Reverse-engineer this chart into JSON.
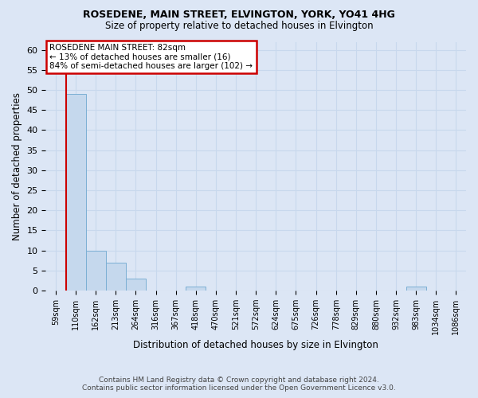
{
  "title": "ROSEDENE, MAIN STREET, ELVINGTON, YORK, YO41 4HG",
  "subtitle": "Size of property relative to detached houses in Elvington",
  "xlabel": "Distribution of detached houses by size in Elvington",
  "ylabel": "Number of detached properties",
  "footnote1": "Contains HM Land Registry data © Crown copyright and database right 2024.",
  "footnote2": "Contains public sector information licensed under the Open Government Licence v3.0.",
  "bin_labels": [
    "59sqm",
    "110sqm",
    "162sqm",
    "213sqm",
    "264sqm",
    "316sqm",
    "367sqm",
    "418sqm",
    "470sqm",
    "521sqm",
    "572sqm",
    "624sqm",
    "675sqm",
    "726sqm",
    "778sqm",
    "829sqm",
    "880sqm",
    "932sqm",
    "983sqm",
    "1034sqm",
    "1086sqm"
  ],
  "bar_heights": [
    0,
    49,
    10,
    7,
    3,
    0,
    0,
    1,
    0,
    0,
    0,
    0,
    0,
    0,
    0,
    0,
    0,
    0,
    1,
    0,
    0
  ],
  "bar_color": "#c5d8ed",
  "bar_edge_color": "#7bafd4",
  "ylim": [
    0,
    62
  ],
  "yticks": [
    0,
    5,
    10,
    15,
    20,
    25,
    30,
    35,
    40,
    45,
    50,
    55,
    60
  ],
  "red_line_x": 0.5,
  "annotation_line1": "ROSEDENE MAIN STREET: 82sqm",
  "annotation_line2": "← 13% of detached houses are smaller (16)",
  "annotation_line3": "84% of semi-detached houses are larger (102) →",
  "annotation_box_facecolor": "#ffffff",
  "annotation_border_color": "#cc0000",
  "red_line_color": "#cc0000",
  "background_color": "#dce6f5",
  "grid_color": "#c8d8ed",
  "title_fontsize": 9,
  "subtitle_fontsize": 8.5,
  "ylabel_fontsize": 8.5,
  "xlabel_fontsize": 8.5,
  "tick_fontsize": 8,
  "xtick_fontsize": 7
}
